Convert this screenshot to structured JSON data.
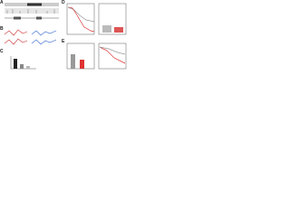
{
  "panels": {
    "labels": [
      "A",
      "B",
      "C",
      "D",
      "E"
    ]
  }
}
